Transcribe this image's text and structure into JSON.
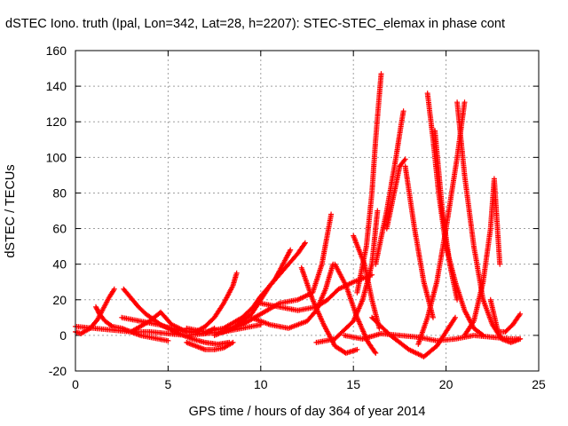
{
  "chart_data": {
    "type": "scatter",
    "title": "dSTEC Iono. truth (Ipal, Lon=342, Lat=28, h=2207): STEC-STEC_elemax in phase cont",
    "xlabel": "GPS time / hours of day 364 of year 2014",
    "ylabel": "dSTEC  / TECUs",
    "xlim": [
      0,
      25
    ],
    "ylim": [
      -20,
      160
    ],
    "xticks": [
      0,
      5,
      10,
      15,
      20,
      25
    ],
    "yticks": [
      -20,
      0,
      20,
      40,
      60,
      80,
      100,
      120,
      140,
      160
    ],
    "grid": true,
    "marker": "+",
    "color": "#ff0000",
    "series": [
      {
        "x": [
          0.0,
          0.3,
          0.8,
          1.2,
          1.5,
          1.8,
          2.1
        ],
        "y": [
          2,
          1,
          4,
          9,
          15,
          21,
          26
        ]
      },
      {
        "x": [
          1.1,
          1.3,
          1.6,
          2.0,
          2.5,
          3.0,
          3.5,
          4.0,
          4.5,
          5.0
        ],
        "y": [
          16,
          12,
          8,
          5,
          4,
          2,
          0,
          -1,
          -2,
          -3
        ]
      },
      {
        "x": [
          2.6,
          3.0,
          3.4,
          3.8,
          4.2,
          4.6,
          5.0,
          5.6,
          6.3,
          7.0,
          7.7,
          8.3
        ],
        "y": [
          26,
          21,
          16,
          12,
          9,
          6,
          4,
          1,
          -2,
          -4,
          -5,
          -4
        ]
      },
      {
        "x": [
          0.0,
          1.0,
          2.0,
          3.0,
          4.0,
          5.0,
          6.0,
          7.0,
          7.5
        ],
        "y": [
          5,
          4,
          3,
          2,
          2,
          1,
          0,
          1,
          4
        ]
      },
      {
        "x": [
          2.5,
          3.5,
          4.5,
          5.5,
          6.5,
          7.0,
          7.5,
          8.0,
          8.5,
          8.7
        ],
        "y": [
          10,
          8,
          6,
          3,
          2,
          5,
          10,
          18,
          28,
          35
        ]
      },
      {
        "x": [
          3.0,
          4.0,
          4.6,
          5.2,
          6.0,
          7.0,
          8.0,
          9.0,
          10.0
        ],
        "y": [
          2,
          8,
          13,
          6,
          2,
          1,
          2,
          4,
          6
        ]
      },
      {
        "x": [
          6.0,
          7.0,
          8.0,
          9.0,
          9.6,
          10.0,
          10.5,
          11.0,
          11.5,
          12.0,
          12.4
        ],
        "y": [
          4,
          2,
          4,
          10,
          16,
          22,
          28,
          34,
          40,
          46,
          52
        ]
      },
      {
        "x": [
          7.5,
          8.5,
          9.5,
          10.0,
          10.5,
          10.8,
          11.0,
          11.3,
          11.6
        ],
        "y": [
          0,
          4,
          12,
          20,
          28,
          32,
          36,
          42,
          48
        ]
      },
      {
        "x": [
          6.0,
          6.5,
          7.0,
          7.5,
          8.0,
          8.5
        ],
        "y": [
          -4,
          -6,
          -8,
          -8,
          -7,
          -4
        ]
      },
      {
        "x": [
          8.0,
          9.0,
          10.0,
          11.0,
          12.0,
          12.8,
          13.3,
          13.8
        ],
        "y": [
          2,
          6,
          12,
          18,
          20,
          24,
          40,
          68
        ]
      },
      {
        "x": [
          10.0,
          11.0,
          12.0,
          13.0,
          13.6,
          14.2,
          15.0,
          16.0
        ],
        "y": [
          18,
          16,
          14,
          16,
          20,
          26,
          30,
          34
        ]
      },
      {
        "x": [
          9.5,
          10.5,
          11.5,
          12.5,
          13.0,
          13.5,
          13.9
        ],
        "y": [
          10,
          6,
          4,
          8,
          14,
          26,
          40
        ]
      },
      {
        "x": [
          12.2,
          12.8,
          13.4,
          14.0,
          14.6,
          15.2
        ],
        "y": [
          38,
          20,
          6,
          -6,
          -10,
          -8
        ]
      },
      {
        "x": [
          14.0,
          14.6,
          15.2,
          15.8,
          16.2
        ],
        "y": [
          40,
          28,
          10,
          -4,
          -10
        ]
      },
      {
        "x": [
          13.0,
          14.0,
          15.0,
          15.5,
          16.0,
          16.3
        ],
        "y": [
          -4,
          -2,
          8,
          20,
          40,
          70
        ]
      },
      {
        "x": [
          15.0,
          15.6,
          16.0,
          16.4
        ],
        "y": [
          56,
          40,
          20,
          4
        ]
      },
      {
        "x": [
          15.2,
          15.7,
          16.0,
          16.2,
          16.4,
          16.5
        ],
        "y": [
          24,
          50,
          80,
          110,
          135,
          147
        ]
      },
      {
        "x": [
          16.2,
          16.8,
          17.3,
          17.6,
          17.7
        ],
        "y": [
          40,
          70,
          100,
          120,
          126
        ]
      },
      {
        "x": [
          16.8,
          17.2,
          17.5,
          17.8
        ],
        "y": [
          60,
          80,
          95,
          99
        ]
      },
      {
        "x": [
          17.8,
          18.3,
          18.8,
          19.3
        ],
        "y": [
          95,
          60,
          30,
          10
        ]
      },
      {
        "x": [
          16.0,
          17.0,
          18.0,
          18.8,
          19.5,
          20.5
        ],
        "y": [
          10,
          0,
          -8,
          -12,
          -6,
          10
        ]
      },
      {
        "x": [
          19.0,
          19.3,
          19.6,
          20.0,
          20.5,
          21.0,
          21.5,
          22.0
        ],
        "y": [
          136,
          110,
          80,
          50,
          30,
          14,
          4,
          0
        ]
      },
      {
        "x": [
          19.4,
          19.8,
          20.2,
          20.6
        ],
        "y": [
          115,
          70,
          40,
          20
        ]
      },
      {
        "x": [
          18.5,
          19.0,
          19.5,
          20.0,
          20.6,
          21.0
        ],
        "y": [
          -5,
          10,
          30,
          60,
          100,
          131
        ]
      },
      {
        "x": [
          20.6,
          21.0,
          21.5,
          22.0,
          22.5,
          23.0,
          23.5,
          24.0
        ],
        "y": [
          131,
          90,
          50,
          20,
          6,
          -2,
          -4,
          -2
        ]
      },
      {
        "x": [
          21.0,
          21.5,
          22.0,
          22.4,
          22.6,
          22.9
        ],
        "y": [
          0,
          8,
          30,
          60,
          88,
          40
        ]
      },
      {
        "x": [
          22.4,
          22.8,
          23.2,
          23.6,
          24.0
        ],
        "y": [
          20,
          2,
          2,
          6,
          12
        ]
      },
      {
        "x": [
          14.5,
          15.5,
          16.5,
          17.5,
          18.5,
          19.5,
          20.5,
          21.5,
          22.5,
          23.5,
          24.0
        ],
        "y": [
          0,
          -2,
          1,
          0,
          -1,
          -3,
          -2,
          0,
          -1,
          -2,
          -2
        ]
      }
    ]
  }
}
